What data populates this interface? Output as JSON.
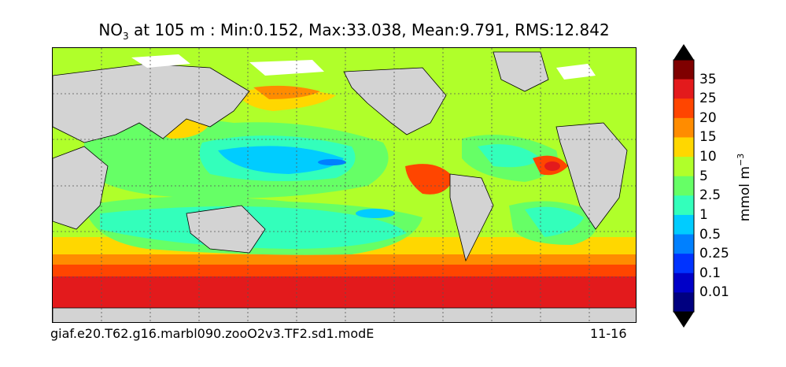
{
  "title": {
    "species": "NO",
    "species_sub": "3",
    "rest": " at 105 m : Min:0.152, Max:33.038, Mean:9.791, RMS:12.842"
  },
  "footer": {
    "case_name": "giaf.e20.T62.g16.marbl090.zooO2v3.TF2.sd1.modE",
    "date_range": "11-16"
  },
  "colorbar": {
    "unit_base": "mmol m",
    "unit_exp": "−3",
    "levels": [
      "35",
      "25",
      "20",
      "15",
      "10",
      "5",
      "2.5",
      "1",
      "0.5",
      "0.25",
      "0.1",
      "0.01"
    ],
    "colors": [
      "#7f0000",
      "#e31a1c",
      "#ff4500",
      "#ff8c00",
      "#ffd700",
      "#b0ff2a",
      "#66ff66",
      "#33ffbb",
      "#00ccff",
      "#0080ff",
      "#0033ff",
      "#0000c8",
      "#000080"
    ],
    "arrow_top": "#000000",
    "arrow_bottom": "#000000"
  },
  "map_colors": {
    "land": "#d3d3d3",
    "sea_ice": "#ffffff"
  }
}
